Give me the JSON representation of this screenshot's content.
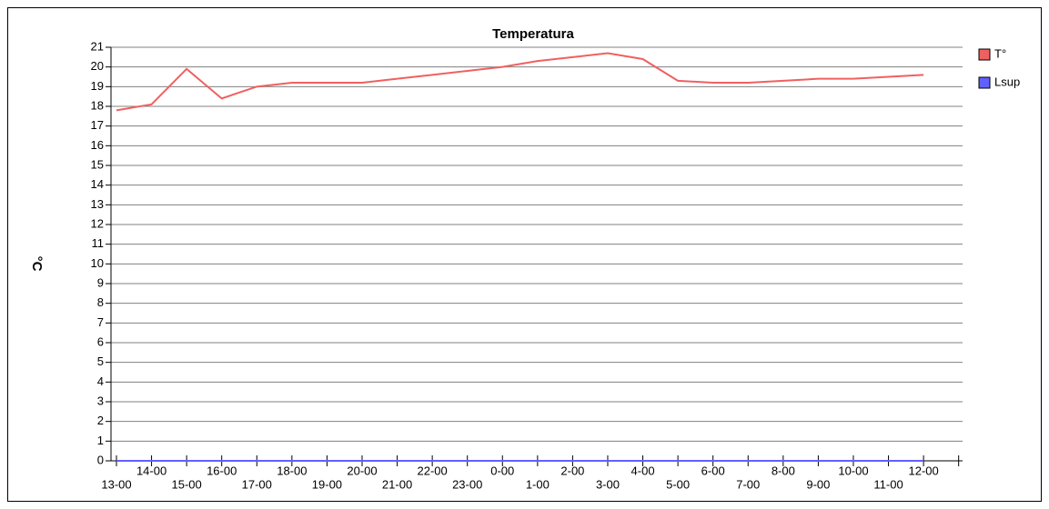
{
  "chart_data": {
    "type": "line",
    "title": "Temperatura",
    "y_label": "°C",
    "categories": [
      "13-00",
      "14-00",
      "15-00",
      "16-00",
      "17-00",
      "18-00",
      "19-00",
      "20-00",
      "21-00",
      "22-00",
      "23-00",
      "0-00",
      "1-00",
      "2-00",
      "3-00",
      "4-00",
      "5-00",
      "6-00",
      "7-00",
      "8-00",
      "9-00",
      "10-00",
      "11-00",
      "12-00"
    ],
    "series": [
      {
        "name": "T°",
        "color": "#f06060",
        "values": [
          17.8,
          18.1,
          19.9,
          18.4,
          19.0,
          19.2,
          19.2,
          19.2,
          19.4,
          19.6,
          19.8,
          20.0,
          20.3,
          20.5,
          20.7,
          20.4,
          19.3,
          19.2,
          19.2,
          19.3,
          19.4,
          19.4,
          19.5,
          19.6
        ]
      },
      {
        "name": "Lsup",
        "color": "#6060ff",
        "values": [
          0,
          0,
          0,
          0,
          0,
          0,
          0,
          0,
          0,
          0,
          0,
          0,
          0,
          0,
          0,
          0,
          0,
          0,
          0,
          0,
          0,
          0,
          0,
          0
        ]
      }
    ],
    "ylim": [
      0,
      21
    ],
    "yticks": [
      0,
      1,
      2,
      3,
      4,
      5,
      6,
      7,
      8,
      9,
      10,
      11,
      12,
      13,
      14,
      15,
      16,
      17,
      18,
      19,
      20,
      21
    ],
    "grid": true,
    "legend": "right"
  }
}
